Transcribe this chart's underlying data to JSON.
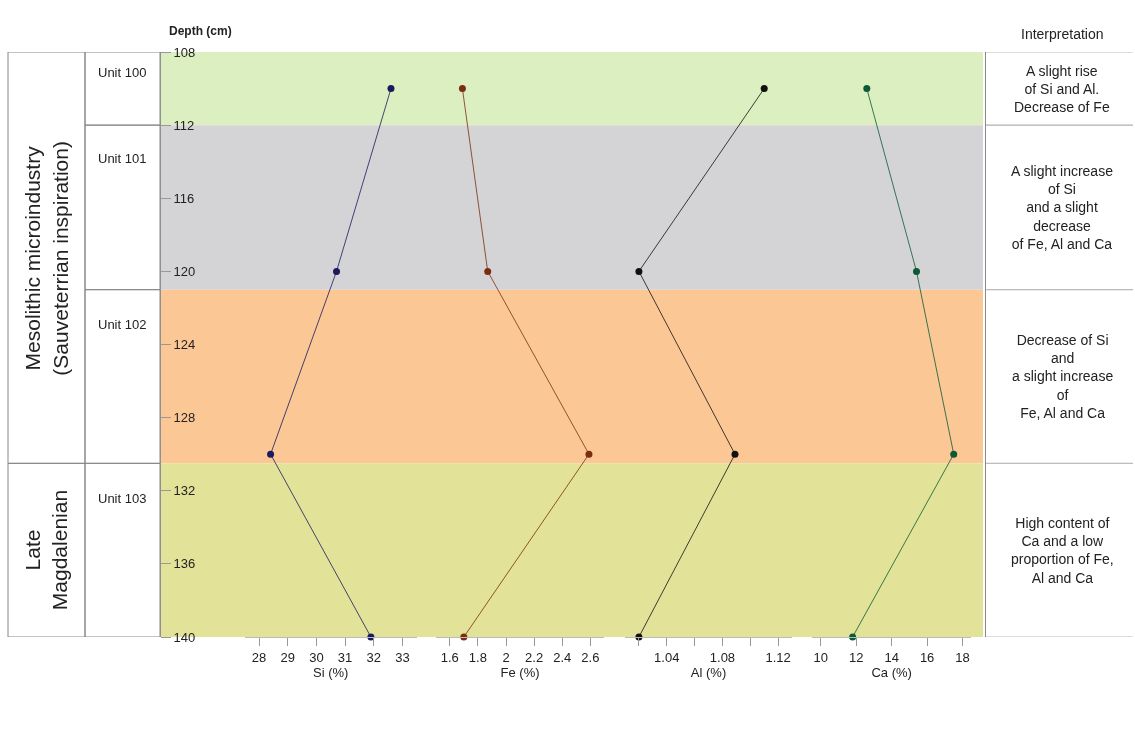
{
  "chart_data": [
    {
      "type": "line",
      "ylabel": "Depth (cm)",
      "xlabel": "Si (%)",
      "marker": "circle",
      "series": [
        {
          "color": "#1a1a5e",
          "x": [
            32.6,
            30.7,
            28.4,
            31.9
          ],
          "values": [
            110,
            120,
            130,
            140
          ]
        }
      ],
      "xlim": [
        27.5,
        33.5
      ],
      "xticks": [
        28,
        29,
        30,
        31,
        32,
        33
      ],
      "ylim": [
        140,
        108
      ],
      "yticks": [
        108,
        112,
        116,
        120,
        124,
        128,
        132,
        136,
        140
      ],
      "bands": [
        {
          "axis": "y",
          "from": 108,
          "to": 112,
          "label": "Unit 100",
          "color": "#dcefc0"
        },
        {
          "axis": "y",
          "from": 112,
          "to": 121,
          "label": "Unit 101",
          "color": "#d4d4d6"
        },
        {
          "axis": "y",
          "from": 121,
          "to": 130.5,
          "label": "Unit 102",
          "color": "#fbc895"
        },
        {
          "axis": "y",
          "from": 130.5,
          "to": 140,
          "label": "Unit 103",
          "color": "#e2e398"
        }
      ],
      "annotations": [
        "Interpretation",
        "A slight rise\nof Si and Al.\nDecrease of Fe",
        "A slight increase\nof Si\nand a slight\ndecrease\nof Fe, Al and Ca",
        "Decrease of Si\nand\na slight increase\nof\nFe, Al and Ca",
        "High content of\nCa and a low\nproportion of Fe,\nAl and Ca",
        "Mesolithic microindustry\n(Sauveterrian inspiration)",
        "Late\nMagdalenian"
      ]
    },
    {
      "type": "line",
      "xlabel": "Fe (%)",
      "marker": "circle",
      "tick_labels": "x",
      "series": [
        {
          "color": "#7a2e10",
          "x": [
            1.69,
            1.87,
            2.59,
            1.7
          ],
          "values": [
            110,
            120,
            130,
            140
          ]
        }
      ],
      "xlim": [
        1.5,
        2.7
      ],
      "xticks": [
        1.6,
        1.8,
        2,
        2.2,
        2.4,
        2.6
      ],
      "ylim": [
        140,
        108
      ]
    },
    {
      "type": "line",
      "xlabel": "Al (%)",
      "marker": "circle",
      "tick_labels": "x",
      "series": [
        {
          "color": "#111111",
          "x": [
            1.11,
            1.02,
            1.089,
            1.02
          ],
          "values": [
            110,
            120,
            130,
            140
          ]
        }
      ],
      "xlim": [
        1.01,
        1.13
      ],
      "xticks": [
        {
          "value": 1.02,
          "label": null
        },
        1.04,
        {
          "value": 1.06,
          "label": null
        },
        1.08,
        {
          "value": 1.1,
          "label": null
        },
        1.12
      ],
      "ylim": [
        140,
        108
      ]
    },
    {
      "type": "line",
      "xlabel": "Ca (%)",
      "marker": "circle",
      "tick_labels": "x",
      "series": [
        {
          "color": "#0b5a35",
          "x": [
            12.6,
            15.4,
            17.5,
            11.8
          ],
          "values": [
            110,
            120,
            130,
            140
          ]
        }
      ],
      "xlim": [
        9.5,
        18.5
      ],
      "xticks": [
        10,
        12,
        14,
        16,
        18
      ],
      "ylim": [
        140,
        108
      ]
    }
  ]
}
